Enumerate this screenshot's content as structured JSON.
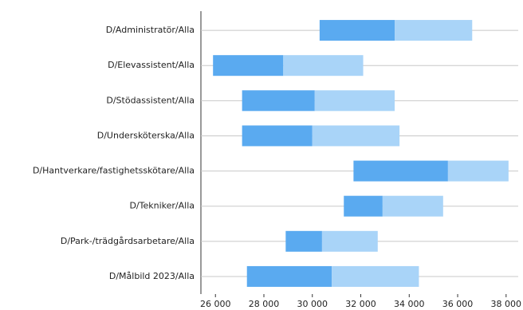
{
  "chart_data": {
    "type": "range-bar",
    "categories": [
      "D/Administratör/Alla",
      "D/Elevassistent/Alla",
      "D/Stödassistent/Alla",
      "D/Undersköterska/Alla",
      "D/Hantverkare/fastighetsskötare/Alla",
      "D/Tekniker/Alla",
      "D/Park-/trädgårdsarbetare/Alla",
      "D/Målbild 2023/Alla"
    ],
    "low": [
      30300,
      25900,
      27100,
      27100,
      31700,
      31300,
      28900,
      27300
    ],
    "mid": [
      33400,
      28800,
      30100,
      30000,
      35600,
      32900,
      30400,
      30800
    ],
    "high": [
      36600,
      32100,
      33400,
      33600,
      38100,
      35400,
      32700,
      34400
    ],
    "colors": [
      "#5aaaf0",
      "#a9d4f8"
    ],
    "xlim": [
      25400,
      38500
    ],
    "xticks": [
      {
        "value": 26000,
        "label": "26 000"
      },
      {
        "value": 28000,
        "label": "28 000"
      },
      {
        "value": 30000,
        "label": "30 000"
      },
      {
        "value": 32000,
        "label": "32 000"
      },
      {
        "value": 34000,
        "label": "34 000"
      },
      {
        "value": 36000,
        "label": "36 000"
      },
      {
        "value": 38000,
        "label": "38 000"
      }
    ],
    "grid": true
  }
}
